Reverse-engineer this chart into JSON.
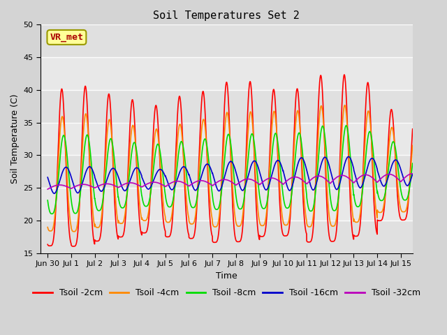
{
  "title": "Soil Temperatures Set 2",
  "xlabel": "Time",
  "ylabel": "Soil Temperature (C)",
  "ylim": [
    15,
    50
  ],
  "yticks": [
    15,
    20,
    25,
    30,
    35,
    40,
    45,
    50
  ],
  "fig_bg_color": "#d4d4d4",
  "plot_bg_color": "#e8e8e8",
  "series": [
    {
      "label": "Tsoil -2cm",
      "color": "#ff0000",
      "lw": 1.2
    },
    {
      "label": "Tsoil -4cm",
      "color": "#ff8800",
      "lw": 1.2
    },
    {
      "label": "Tsoil -8cm",
      "color": "#00dd00",
      "lw": 1.2
    },
    {
      "label": "Tsoil -16cm",
      "color": "#0000cc",
      "lw": 1.2
    },
    {
      "label": "Tsoil -32cm",
      "color": "#bb00bb",
      "lw": 1.2
    }
  ],
  "annotation_text": "VR_met",
  "annotation_color": "#aa0000",
  "annotation_bg": "#ffff99",
  "num_days": 15.5,
  "samples_per_day": 240,
  "x_tick_labels": [
    "Jun 30",
    "Jul 1",
    "Jul 2",
    "Jul 3",
    "Jul 4",
    "Jul 5",
    "Jul 6",
    "Jul 7",
    "Jul 8",
    "Jul 9",
    "Jul 10",
    "Jul 11",
    "Jul 12",
    "Jul 13",
    "Jul 14",
    "Jul 15"
  ],
  "legend_fontsize": 9,
  "title_fontsize": 11,
  "peak_amps_2cm": [
    24.0,
    24.5,
    22.5,
    21.0,
    19.5,
    21.5,
    22.5,
    24.5,
    24.5,
    22.5,
    22.5,
    25.5,
    25.5,
    23.5,
    17.0
  ],
  "peak_amps_4cm": [
    17.5,
    18.0,
    16.5,
    15.0,
    14.0,
    15.0,
    16.0,
    17.5,
    17.5,
    17.5,
    17.5,
    18.5,
    18.5,
    17.0,
    13.0
  ],
  "peak_amps_8cm": [
    12.0,
    12.0,
    11.0,
    10.0,
    9.5,
    10.0,
    10.5,
    11.5,
    11.5,
    11.5,
    11.5,
    13.0,
    13.0,
    11.5,
    9.0
  ],
  "peak_amps_16cm": [
    4.0,
    4.0,
    3.5,
    3.5,
    3.0,
    3.5,
    4.0,
    4.5,
    4.5,
    4.5,
    5.0,
    5.0,
    5.0,
    4.5,
    4.0
  ],
  "peak_amps_32cm": [
    0.6,
    0.6,
    0.6,
    0.7,
    0.7,
    0.8,
    0.8,
    0.9,
    0.9,
    1.0,
    1.1,
    1.2,
    1.2,
    1.2,
    1.2
  ],
  "base_2cm": 24.5,
  "base_4cm": 24.5,
  "base_8cm": 25.2,
  "base_16cm": 25.5,
  "base_32cm": 25.0,
  "phase_2cm": 0.6,
  "phase_4cm": 0.62,
  "phase_8cm": 0.68,
  "phase_16cm": 0.78,
  "phase_32cm": 0.5,
  "spike_sharpness": 4.0,
  "grid_color": "#ffffff",
  "grid_alpha": 0.9
}
